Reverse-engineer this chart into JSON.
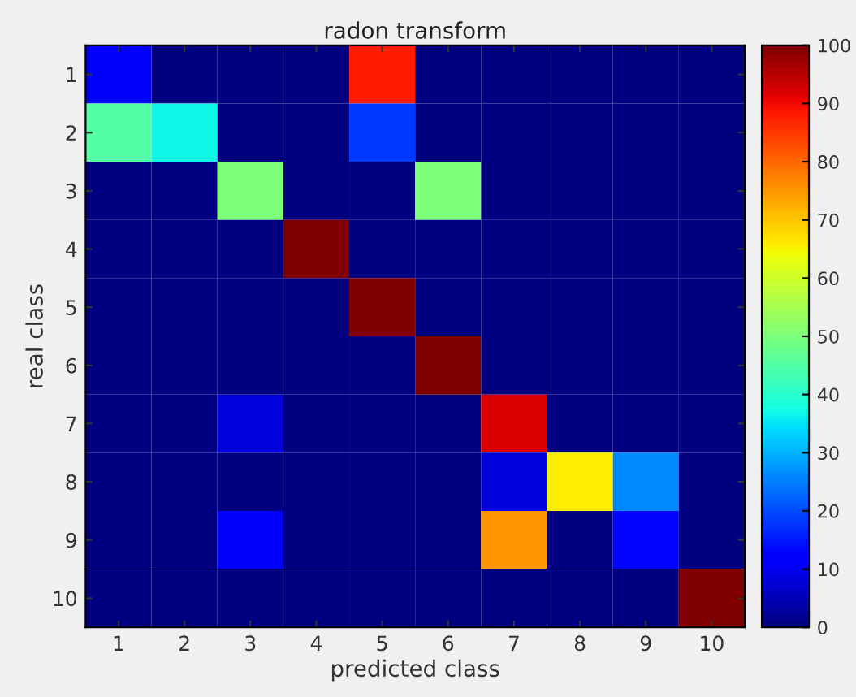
{
  "chart_data": {
    "type": "heatmap",
    "title": "radon transform",
    "xlabel": "predicted class",
    "ylabel": "real class",
    "categories": [
      "1",
      "2",
      "3",
      "4",
      "5",
      "6",
      "7",
      "8",
      "9",
      "10"
    ],
    "y_categories": [
      "1",
      "2",
      "3",
      "4",
      "5",
      "6",
      "7",
      "8",
      "9",
      "10"
    ],
    "cells": [
      [
        12,
        0,
        0,
        0,
        88,
        0,
        0,
        0,
        0,
        0
      ],
      [
        45,
        37,
        0,
        0,
        18,
        0,
        0,
        0,
        0,
        0
      ],
      [
        0,
        0,
        50,
        0,
        0,
        50,
        0,
        0,
        0,
        0
      ],
      [
        0,
        0,
        0,
        100,
        0,
        0,
        0,
        0,
        0,
        0
      ],
      [
        0,
        0,
        0,
        0,
        100,
        0,
        0,
        0,
        0,
        0
      ],
      [
        0,
        0,
        0,
        0,
        0,
        100,
        0,
        0,
        0,
        0
      ],
      [
        0,
        0,
        8,
        0,
        0,
        0,
        92,
        0,
        0,
        0
      ],
      [
        0,
        0,
        0,
        0,
        0,
        0,
        8,
        66,
        26,
        0
      ],
      [
        0,
        0,
        12,
        0,
        0,
        0,
        75,
        0,
        13,
        0
      ],
      [
        0,
        0,
        0,
        0,
        0,
        0,
        0,
        0,
        0,
        100
      ]
    ],
    "clim": [
      0,
      100
    ],
    "cticks": [
      0,
      10,
      20,
      30,
      40,
      50,
      60,
      70,
      80,
      90,
      100
    ],
    "grid": false
  }
}
